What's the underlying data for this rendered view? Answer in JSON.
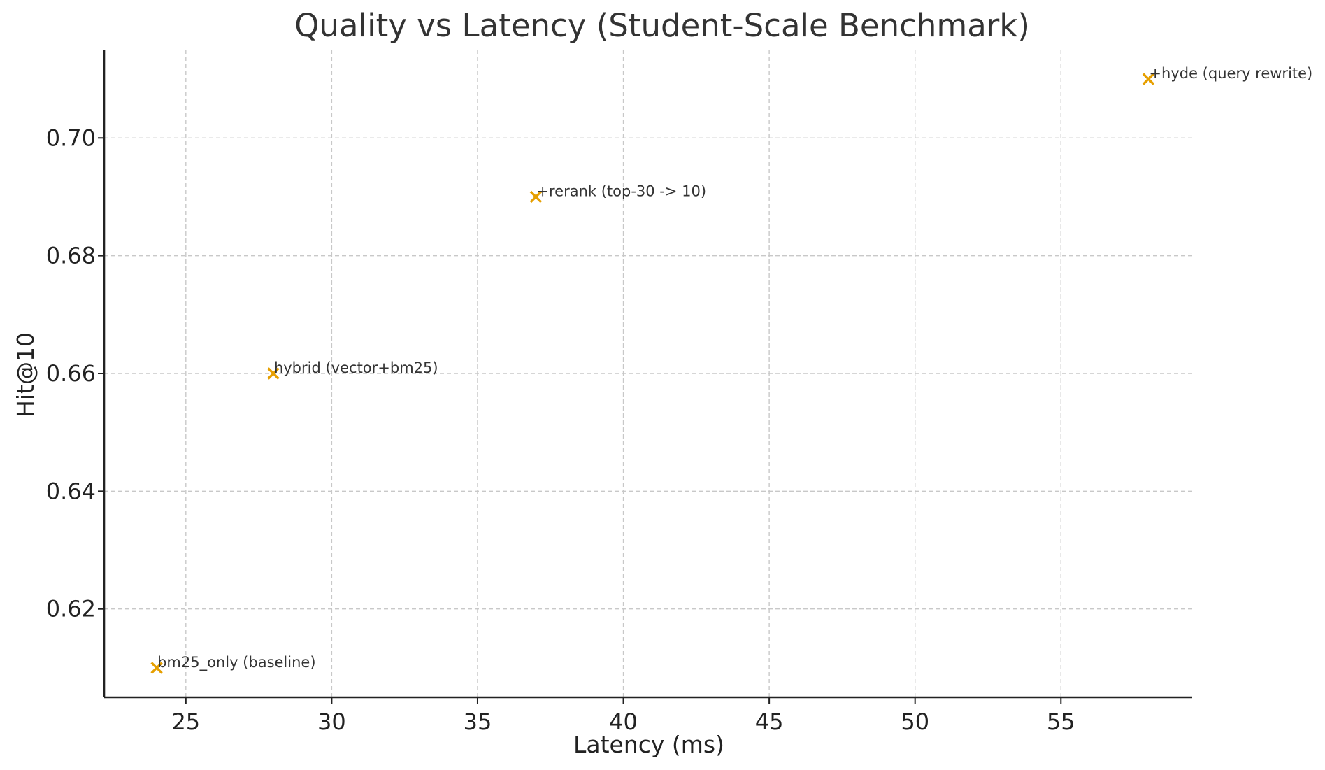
{
  "chart_data": {
    "type": "scatter",
    "title": "Quality vs Latency (Student-Scale Benchmark)",
    "xlabel": "Latency (ms)",
    "ylabel": "Hit@10",
    "xlim": [
      22.2,
      59.5
    ],
    "ylim": [
      0.605,
      0.715
    ],
    "x_ticks": [
      25,
      30,
      35,
      40,
      45,
      50,
      55
    ],
    "y_ticks": [
      0.62,
      0.64,
      0.66,
      0.68,
      0.7
    ],
    "grid": true,
    "marker": "x",
    "marker_color": "#E69F00",
    "points": [
      {
        "label": "bm25_only (baseline)",
        "x": 24,
        "y": 0.61
      },
      {
        "label": "hybrid (vector+bm25)",
        "x": 28,
        "y": 0.66
      },
      {
        "label": "+rerank (top-30 -> 10)",
        "x": 37,
        "y": 0.69
      },
      {
        "label": "+hyde (query rewrite)",
        "x": 58,
        "y": 0.71
      }
    ]
  }
}
